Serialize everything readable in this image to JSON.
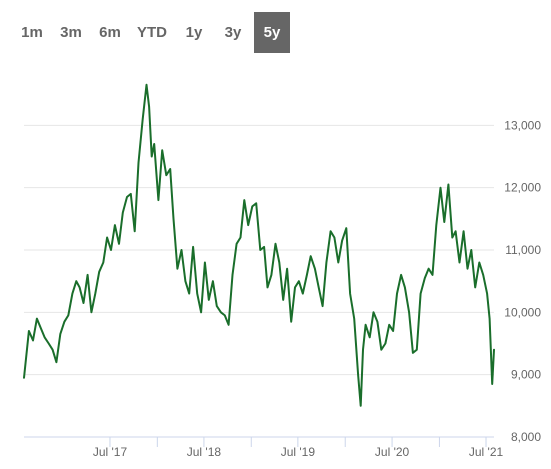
{
  "range_selector": {
    "options": [
      "1m",
      "3m",
      "6m",
      "YTD",
      "1y",
      "3y",
      "5y"
    ],
    "selected": "5y"
  },
  "colors": {
    "line": "#1a6e2b",
    "selected_bg": "#666666",
    "grid": "#e6e6e6",
    "text": "#666666"
  },
  "chart_data": {
    "type": "line",
    "title": "",
    "xlabel": "",
    "ylabel": "",
    "ylim": [
      8000,
      14000
    ],
    "xlim": [
      "2016-08-01",
      "2021-08-01"
    ],
    "yticks": [
      8000,
      9000,
      10000,
      11000,
      12000,
      13000
    ],
    "ytick_labels": [
      "8,000",
      "9,000",
      "10,000",
      "11,000",
      "12,000",
      "13,000"
    ],
    "xticks": [
      "2017-07-01",
      "2018-01-01",
      "2018-07-01",
      "2019-01-01",
      "2019-07-01",
      "2020-01-01",
      "2020-07-01",
      "2021-01-01",
      "2021-07-01"
    ],
    "xtick_labels": [
      "Jul '17",
      "",
      "Jul '18",
      "",
      "Jul '19",
      "",
      "Jul '20",
      "",
      "Jul '21"
    ],
    "grid": true,
    "legend": "none",
    "series": [
      {
        "x": [
          "2016-08-01",
          "2016-08-20",
          "2016-09-05",
          "2016-09-20",
          "2016-10-05",
          "2016-10-20",
          "2016-11-05",
          "2016-11-20",
          "2016-12-05",
          "2016-12-20",
          "2017-01-05",
          "2017-01-20",
          "2017-02-05",
          "2017-02-20",
          "2017-03-05",
          "2017-03-20",
          "2017-04-05",
          "2017-04-20",
          "2017-05-05",
          "2017-05-20",
          "2017-06-05",
          "2017-06-20",
          "2017-07-05",
          "2017-07-20",
          "2017-08-05",
          "2017-08-20",
          "2017-09-05",
          "2017-09-20",
          "2017-10-05",
          "2017-10-20",
          "2017-11-05",
          "2017-11-20",
          "2017-11-30",
          "2017-12-10",
          "2017-12-20",
          "2018-01-05",
          "2018-01-20",
          "2018-02-05",
          "2018-02-20",
          "2018-03-05",
          "2018-03-20",
          "2018-04-05",
          "2018-04-20",
          "2018-05-05",
          "2018-05-20",
          "2018-06-05",
          "2018-06-20",
          "2018-07-05",
          "2018-07-20",
          "2018-08-05",
          "2018-08-20",
          "2018-09-05",
          "2018-09-20",
          "2018-10-05",
          "2018-10-20",
          "2018-11-05",
          "2018-11-20",
          "2018-12-05",
          "2018-12-20",
          "2019-01-05",
          "2019-01-20",
          "2019-02-05",
          "2019-02-20",
          "2019-03-05",
          "2019-03-20",
          "2019-04-05",
          "2019-04-20",
          "2019-05-05",
          "2019-05-20",
          "2019-06-05",
          "2019-06-20",
          "2019-07-05",
          "2019-07-20",
          "2019-08-05",
          "2019-08-20",
          "2019-09-05",
          "2019-09-20",
          "2019-10-05",
          "2019-10-20",
          "2019-11-05",
          "2019-11-20",
          "2019-12-05",
          "2019-12-20",
          "2020-01-05",
          "2020-01-20",
          "2020-02-05",
          "2020-02-20",
          "2020-03-01",
          "2020-03-10",
          "2020-03-20",
          "2020-04-05",
          "2020-04-20",
          "2020-05-05",
          "2020-05-20",
          "2020-06-05",
          "2020-06-20",
          "2020-07-05",
          "2020-07-20",
          "2020-08-05",
          "2020-08-20",
          "2020-09-05",
          "2020-09-20",
          "2020-10-05",
          "2020-10-20",
          "2020-11-05",
          "2020-11-20",
          "2020-12-05",
          "2020-12-20",
          "2021-01-05",
          "2021-01-20",
          "2021-02-05",
          "2021-02-20",
          "2021-03-05",
          "2021-03-20",
          "2021-04-05",
          "2021-04-20",
          "2021-05-05",
          "2021-05-20",
          "2021-06-05",
          "2021-06-20",
          "2021-07-05",
          "2021-07-15",
          "2021-07-25",
          "2021-08-01"
        ],
        "y": [
          8950,
          9700,
          9550,
          9900,
          9750,
          9600,
          9500,
          9400,
          9200,
          9650,
          9850,
          9950,
          10300,
          10500,
          10400,
          10150,
          10600,
          10000,
          10300,
          10650,
          10800,
          11200,
          11000,
          11400,
          11100,
          11600,
          11850,
          11900,
          11300,
          12400,
          13100,
          13650,
          13300,
          12500,
          12700,
          11800,
          12600,
          12200,
          12300,
          11500,
          10700,
          11000,
          10500,
          10300,
          11050,
          10300,
          10000,
          10800,
          10200,
          10500,
          10100,
          10000,
          9950,
          9800,
          10600,
          11100,
          11200,
          11800,
          11400,
          11700,
          11750,
          11000,
          11050,
          10400,
          10600,
          11100,
          10800,
          10200,
          10700,
          9850,
          10400,
          10500,
          10300,
          10600,
          10900,
          10700,
          10400,
          10100,
          10800,
          11300,
          11200,
          10800,
          11150,
          11350,
          10300,
          9900,
          9000,
          8500,
          9400,
          9800,
          9600,
          10000,
          9850,
          9400,
          9500,
          9800,
          9700,
          10300,
          10600,
          10400,
          10000,
          9350,
          9400,
          10300,
          10550,
          10700,
          10600,
          11400,
          12000,
          11450,
          12050,
          11200,
          11300,
          10800,
          11300,
          10700,
          11000,
          10400,
          10800,
          10600,
          10300,
          9900,
          8850,
          9400
        ]
      }
    ]
  }
}
